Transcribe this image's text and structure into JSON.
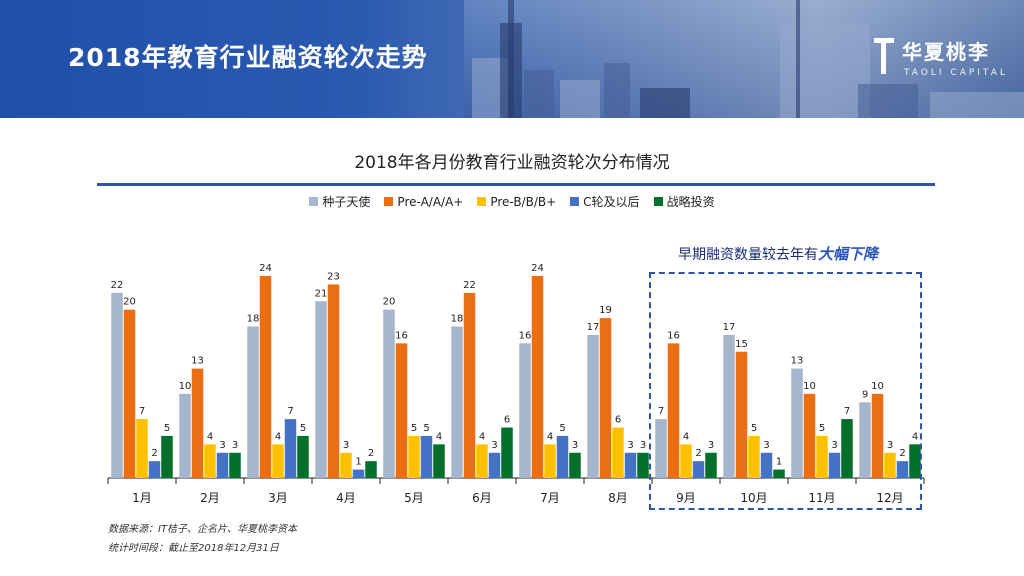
{
  "page_title": "2018年教育行业融资轮次走势",
  "logo": {
    "name": "华夏桃李",
    "subtitle": "TAOLI CAPITAL"
  },
  "colors": {
    "header": "#2a5ab0",
    "rule": "#2e55a4"
  },
  "annotation": {
    "prefix": "早期融资数量较去年有",
    "emphasis": "大幅下降"
  },
  "footnotes": {
    "source": "数据来源：IT桔子、企名片、华夏桃李资本",
    "period": "统计时间段：截止至2018年12月31日"
  },
  "chart_data": {
    "type": "bar",
    "title": "2018年各月份教育行业融资轮次分布情况",
    "xlabel": "",
    "ylabel": "",
    "ylim": [
      0,
      25
    ],
    "legend_position": "top",
    "categories": [
      "1月",
      "2月",
      "3月",
      "4月",
      "5月",
      "6月",
      "7月",
      "8月",
      "9月",
      "10月",
      "11月",
      "12月"
    ],
    "series": [
      {
        "name": "种子天使",
        "color": "#a5b5cc",
        "values": [
          22,
          10,
          18,
          21,
          20,
          18,
          16,
          17,
          7,
          17,
          13,
          9
        ]
      },
      {
        "name": "Pre-A/A/A+",
        "color": "#ea6f14",
        "values": [
          20,
          13,
          24,
          23,
          16,
          22,
          24,
          19,
          16,
          15,
          10,
          10
        ]
      },
      {
        "name": "Pre-B/B/B+",
        "color": "#ffc000",
        "values": [
          7,
          4,
          4,
          3,
          5,
          4,
          4,
          6,
          4,
          5,
          5,
          3
        ]
      },
      {
        "name": "C轮及以后",
        "color": "#4472c4",
        "values": [
          2,
          3,
          7,
          1,
          5,
          3,
          5,
          3,
          2,
          3,
          3,
          2
        ]
      },
      {
        "name": "战略投资",
        "color": "#00702a",
        "values": [
          5,
          3,
          5,
          2,
          4,
          6,
          3,
          3,
          3,
          1,
          7,
          4
        ]
      }
    ]
  }
}
